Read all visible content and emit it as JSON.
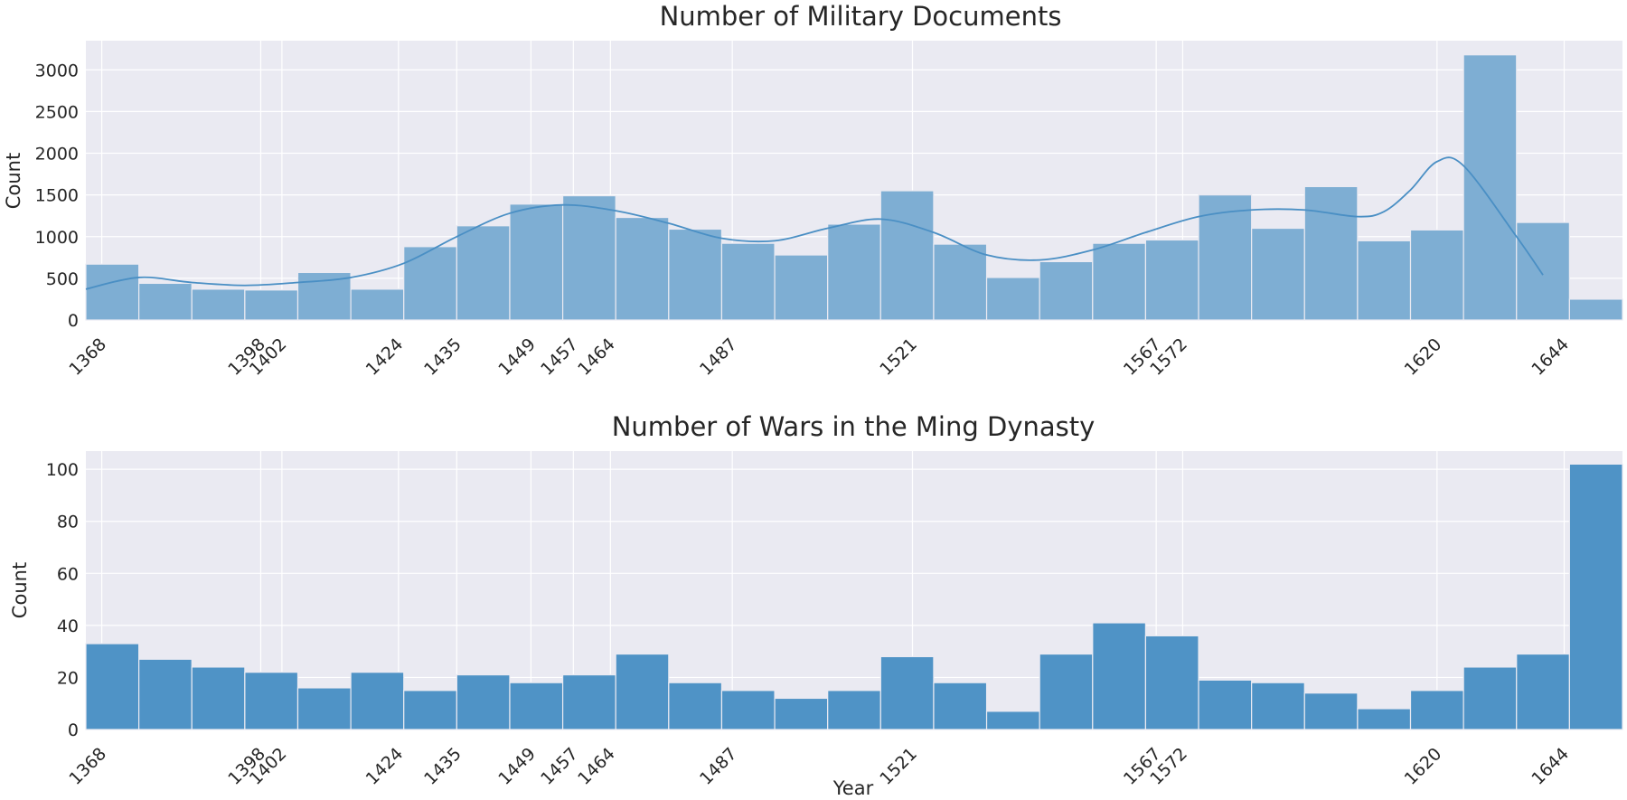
{
  "chart_data": [
    {
      "type": "bar",
      "title": "Number of Military Documents",
      "xlabel": "",
      "ylabel": "Count",
      "xlim": [
        1365,
        1655
      ],
      "ylim": [
        0,
        3350
      ],
      "yticks": [
        0,
        500,
        1000,
        1500,
        2000,
        2500,
        3000
      ],
      "xticks": [
        "1368",
        "1398",
        "1402",
        "1424",
        "1435",
        "1449",
        "1457",
        "1464",
        "1487",
        "1521",
        "1567",
        "1572",
        "1620",
        "1644"
      ],
      "bin_start": 1365,
      "bin_width": 10,
      "values": [
        670,
        440,
        370,
        360,
        570,
        370,
        880,
        1130,
        1390,
        1490,
        1230,
        1090,
        920,
        780,
        1150,
        1550,
        910,
        510,
        700,
        920,
        960,
        1500,
        1100,
        1600,
        950,
        1080,
        3180,
        1170,
        250
      ],
      "kde": {
        "x": [
          1365,
          1375,
          1385,
          1395,
          1405,
          1415,
          1425,
          1435,
          1445,
          1455,
          1465,
          1475,
          1485,
          1495,
          1505,
          1515,
          1525,
          1535,
          1545,
          1555,
          1565,
          1575,
          1585,
          1595,
          1605,
          1610,
          1615,
          1620,
          1625,
          1635,
          1640
        ],
        "y": [
          370,
          510,
          450,
          415,
          450,
          510,
          680,
          1000,
          1280,
          1380,
          1310,
          1160,
          980,
          950,
          1100,
          1210,
          1050,
          780,
          720,
          840,
          1050,
          1240,
          1320,
          1320,
          1240,
          1300,
          1560,
          1900,
          1850,
          1000,
          540
        ]
      },
      "color": "#7eaed3",
      "line_color": "#4a8fc4"
    },
    {
      "type": "bar",
      "title": "Number of Wars in the Ming Dynasty",
      "xlabel": "Year",
      "ylabel": "Count",
      "xlim": [
        1365,
        1655
      ],
      "ylim": [
        0,
        107
      ],
      "yticks": [
        0,
        20,
        40,
        60,
        80,
        100
      ],
      "xticks": [
        "1368",
        "1398",
        "1402",
        "1424",
        "1435",
        "1449",
        "1457",
        "1464",
        "1487",
        "1521",
        "1567",
        "1572",
        "1620",
        "1644"
      ],
      "bin_start": 1365,
      "bin_width": 10,
      "values": [
        33,
        27,
        24,
        22,
        16,
        22,
        15,
        21,
        18,
        21,
        29,
        18,
        15,
        12,
        15,
        28,
        18,
        7,
        29,
        41,
        36,
        19,
        18,
        14,
        8,
        15,
        24,
        29,
        102
      ],
      "color": "#4f93c6"
    }
  ]
}
